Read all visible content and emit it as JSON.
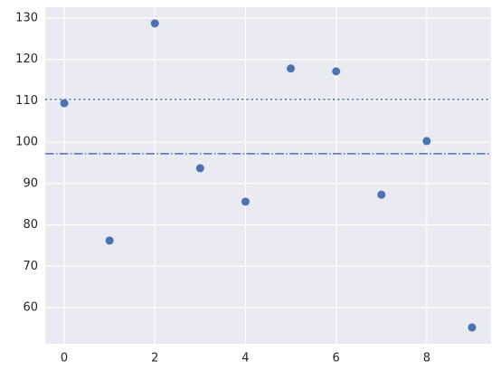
{
  "chart_data": {
    "type": "scatter",
    "x": [
      0,
      1,
      2,
      3,
      4,
      5,
      6,
      7,
      8,
      9
    ],
    "series": [
      {
        "color": "#4c72b0",
        "values": [
          109.4,
          76.2,
          128.7,
          93.7,
          85.6,
          117.8,
          117.1,
          87.3,
          100.25,
          55.2
        ]
      }
    ],
    "hlines": [
      {
        "value": 110.3,
        "linestyle": "dotted",
        "color": "#4c72b0"
      },
      {
        "value": 97.2,
        "linestyle": "dashdot",
        "color": "#4c72b0"
      }
    ],
    "xlim": [
      -0.42,
      9.42
    ],
    "ylim": [
      51.25,
      132.6
    ],
    "xticks": [
      0,
      2,
      4,
      6,
      8
    ],
    "yticks": [
      60,
      70,
      80,
      90,
      100,
      110,
      120,
      130
    ],
    "grid": true,
    "background": "#eaeaf2"
  }
}
